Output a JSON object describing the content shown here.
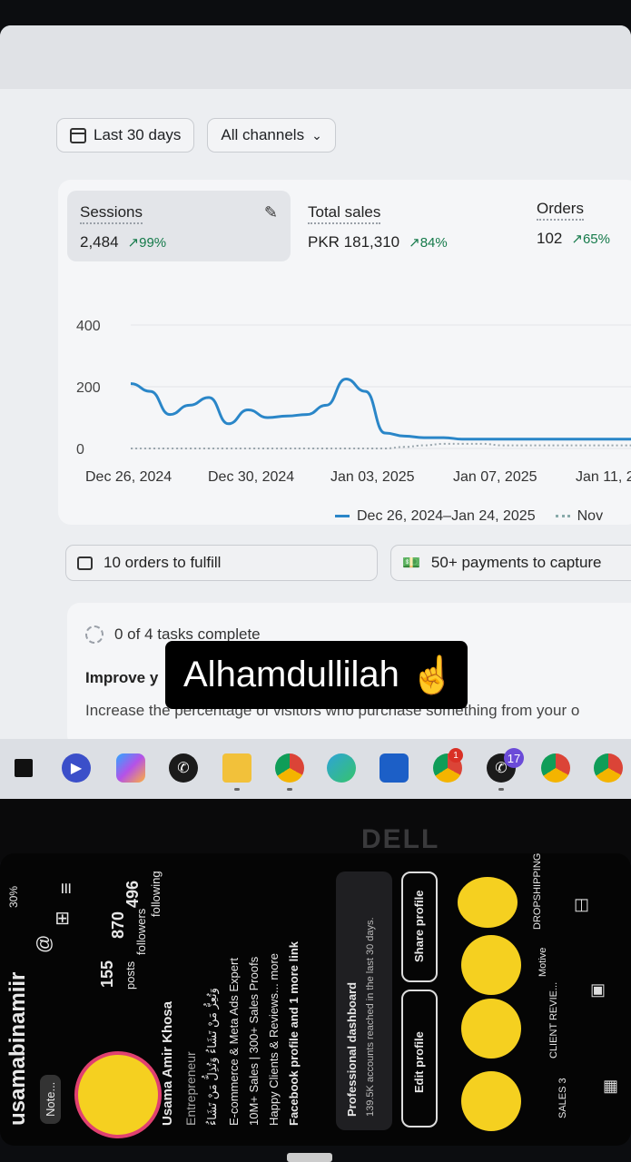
{
  "dashboard": {
    "date_filter": "Last 30 days",
    "channel_filter": "All channels",
    "metrics": [
      {
        "label": "Sessions",
        "value": "2,484",
        "delta": "↗99%"
      },
      {
        "label": "Total sales",
        "value": "PKR 181,310",
        "delta": "↗84%"
      },
      {
        "label": "Orders",
        "value": "102",
        "delta": "↗65%"
      }
    ],
    "legend_current": "Dec 26, 2024–Jan 24, 2025",
    "legend_previous": "Nov",
    "orders_to_fulfill": "10 orders to fulfill",
    "payments_to_capture": "50+ payments to capture",
    "tasks_complete": "0 of 4 tasks complete",
    "improve_title": "Improve y",
    "increase_text": "Increase the percentage of visitors who purchase something from your o"
  },
  "chart_data": {
    "type": "line",
    "ylim": [
      0,
      400
    ],
    "y_ticks": [
      "400",
      "200",
      "0"
    ],
    "x_ticks": [
      "Dec 26, 2024",
      "Dec 30, 2024",
      "Jan 03, 2025",
      "Jan 07, 2025",
      "Jan 11, 2"
    ],
    "series": [
      {
        "name": "Dec 26, 2024–Jan 24, 2025",
        "color": "#2a86c8",
        "x_index": [
          0,
          1,
          2,
          3,
          4,
          5,
          6,
          7,
          8,
          9,
          10,
          11,
          12,
          13,
          14,
          15,
          16,
          17,
          18,
          19,
          20,
          21,
          22,
          23,
          24,
          25,
          26
        ],
        "values": [
          210,
          185,
          110,
          140,
          165,
          80,
          125,
          100,
          105,
          110,
          140,
          225,
          185,
          50,
          40,
          35,
          35,
          30,
          30,
          30,
          30,
          30,
          30,
          30,
          30,
          30,
          30
        ]
      },
      {
        "name": "Nov",
        "color": "#9aa6ad",
        "values": [
          0,
          0,
          0,
          0,
          0,
          0,
          0,
          0,
          0,
          0,
          0,
          0,
          0,
          0,
          5,
          10,
          15,
          15,
          15,
          10,
          10,
          10,
          10,
          10,
          10,
          10,
          10
        ]
      }
    ]
  },
  "overlay_caption": {
    "text": "Alhamdullilah",
    "emoji": "☝"
  },
  "taskbar": {
    "badge_count": "17",
    "badge_chrome": "1"
  },
  "laptop_brand": "DELL",
  "phone": {
    "status": "30%",
    "username": "usamabinamiir",
    "posts": "155",
    "posts_label": "posts",
    "followers": "870",
    "followers_label": "followers",
    "following": "496",
    "following_label": "following",
    "name": "Usama Amir Khosa",
    "category": "Entrepreneur",
    "bio_arabic": "وَتُعِزُّ مَنْ تَشَاءُ وَتُذِلُّ مَنْ تَشَاءُ",
    "bio_line1": "E-commerce & Meta Ads Expert",
    "bio_line2": "10M+ Sales | 300+ Sales Proofs",
    "bio_line3": "Happy Clients & Reviews... more",
    "bio_line4": "Facebook profile and 1 more link",
    "note": "Note...",
    "dashboard_title": "Professional dashboard",
    "dashboard_sub": "139.5K accounts reached in the last 30 days.",
    "edit_profile": "Edit profile",
    "share_profile": "Share profile",
    "highlights": [
      "SALES 3",
      "CLIENT REVIE...",
      "Motive",
      "DROPSHIPPING"
    ]
  }
}
